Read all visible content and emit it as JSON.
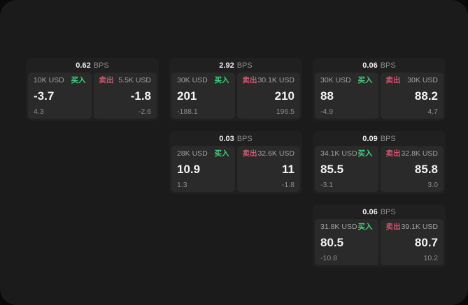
{
  "labels": {
    "buy": "买入",
    "sell": "卖出",
    "bps_unit": "BPS"
  },
  "colors": {
    "background": "#0a0a0a",
    "panel": "#1b1b1b",
    "card": "#202020",
    "pane": "#2a2a2a",
    "buy_green": "#45cf7b",
    "sell_red": "#cc5670"
  },
  "cards": [
    {
      "bps": "0.62",
      "buy": {
        "amount": "10K USD",
        "price": "-3.7",
        "delta": "4.3"
      },
      "sell": {
        "amount": "5.5K USD",
        "price": "-1.8",
        "delta": "-2.6"
      }
    },
    {
      "bps": "2.92",
      "buy": {
        "amount": "30K USD",
        "price": "201",
        "delta": "-188.1"
      },
      "sell": {
        "amount": "30.1K USD",
        "price": "210",
        "delta": "196.5"
      }
    },
    {
      "bps": "0.06",
      "buy": {
        "amount": "30K USD",
        "price": "88",
        "delta": "-4.9"
      },
      "sell": {
        "amount": "30K USD",
        "price": "88.2",
        "delta": "4.7"
      }
    },
    {
      "bps": "0.03",
      "buy": {
        "amount": "28K USD",
        "price": "10.9",
        "delta": "1.3"
      },
      "sell": {
        "amount": "32.6K USD",
        "price": "11",
        "delta": "-1.8"
      }
    },
    {
      "bps": "0.09",
      "buy": {
        "amount": "34.1K USD",
        "price": "85.5",
        "delta": "-3.1"
      },
      "sell": {
        "amount": "32.8K USD",
        "price": "85.8",
        "delta": "3.0"
      }
    },
    {
      "bps": "0.06",
      "buy": {
        "amount": "31.8K USD",
        "price": "80.5",
        "delta": "-10.8"
      },
      "sell": {
        "amount": "39.1K USD",
        "price": "80.7",
        "delta": "10.2"
      }
    }
  ]
}
